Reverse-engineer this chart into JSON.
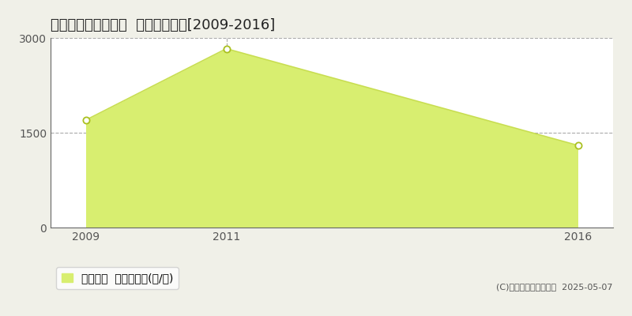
{
  "title": "東田川郡庄内町槇島  農地価格推移[2009-2016]",
  "years": [
    2009,
    2011,
    2016
  ],
  "values": [
    1700,
    2830,
    1300
  ],
  "ylim": [
    0,
    3000
  ],
  "yticks": [
    0,
    1500,
    3000
  ],
  "xticks": [
    2009,
    2011,
    2016
  ],
  "line_color": "#c8de50",
  "fill_color": "#d8ee70",
  "fill_alpha": 1.0,
  "marker_facecolor": "white",
  "marker_edgecolor": "#aac020",
  "grid_color": "#aaaaaa",
  "figure_bg": "#f0f0e8",
  "plot_bg": "#ffffff",
  "legend_label": "農地価格  平均坪単価(円/坪)",
  "copyright_text": "(C)土地価格ドットコム  2025-05-07",
  "title_fontsize": 13,
  "axis_fontsize": 10,
  "legend_fontsize": 10,
  "spine_color": "#666666"
}
